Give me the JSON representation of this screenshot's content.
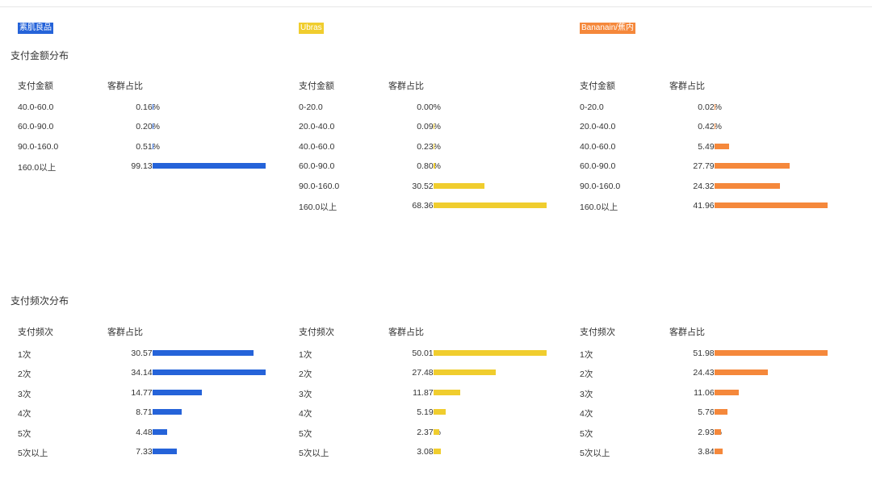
{
  "sections": {
    "amount_title": "支付金额分布",
    "freq_title": "支付频次分布"
  },
  "brands": [
    {
      "name": "素肌良品",
      "color": "#2563d9"
    },
    {
      "name": "Ubras",
      "color": "#f0cd2e"
    },
    {
      "name": "Bananain/蕉内",
      "color": "#f5883b"
    }
  ],
  "headers": {
    "amount_label": "支付金额",
    "freq_label": "支付频次",
    "share_label": "客群占比"
  },
  "chart_data": [
    {
      "type": "bar",
      "title": "支付金额分布",
      "panels": [
        {
          "brand": "素肌良品",
          "categories": [
            "40.0-60.0",
            "60.0-90.0",
            "90.0-160.0",
            "160.0以上"
          ],
          "values": [
            0.16,
            0.2,
            0.51,
            99.13
          ],
          "labels": [
            "0.16%",
            "0.20%",
            "0.51%",
            "99.13%"
          ]
        },
        {
          "brand": "Ubras",
          "categories": [
            "0-20.0",
            "20.0-40.0",
            "40.0-60.0",
            "60.0-90.0",
            "90.0-160.0",
            "160.0以上"
          ],
          "values": [
            0.0,
            0.09,
            0.23,
            0.8,
            30.52,
            68.36
          ],
          "labels": [
            "0.00%",
            "0.09%",
            "0.23%",
            "0.80%",
            "30.52%",
            "68.36%"
          ]
        },
        {
          "brand": "Bananain/蕉内",
          "categories": [
            "0-20.0",
            "20.0-40.0",
            "40.0-60.0",
            "60.0-90.0",
            "90.0-160.0",
            "160.0以上"
          ],
          "values": [
            0.02,
            0.42,
            5.49,
            27.79,
            24.32,
            41.96
          ],
          "labels": [
            "0.02%",
            "0.42%",
            "5.49%",
            "27.79%",
            "24.32%",
            "41.96%"
          ]
        }
      ]
    },
    {
      "type": "bar",
      "title": "支付频次分布",
      "panels": [
        {
          "brand": "素肌良品",
          "categories": [
            "1次",
            "2次",
            "3次",
            "4次",
            "5次",
            "5次以上"
          ],
          "values": [
            30.57,
            34.14,
            14.77,
            8.71,
            4.48,
            7.33
          ],
          "labels": [
            "30.57%",
            "34.14%",
            "14.77%",
            "8.71%",
            "4.48%",
            "7.33%"
          ]
        },
        {
          "brand": "Ubras",
          "categories": [
            "1次",
            "2次",
            "3次",
            "4次",
            "5次",
            "5次以上"
          ],
          "values": [
            50.01,
            27.48,
            11.87,
            5.19,
            2.37,
            3.08
          ],
          "labels": [
            "50.01%",
            "27.48%",
            "11.87%",
            "5.19%",
            "2.37%",
            "3.08%"
          ]
        },
        {
          "brand": "Bananain/蕉内",
          "categories": [
            "1次",
            "2次",
            "3次",
            "4次",
            "5次",
            "5次以上"
          ],
          "values": [
            51.98,
            24.43,
            11.06,
            5.76,
            2.93,
            3.84
          ],
          "labels": [
            "51.98%",
            "24.43%",
            "11.06%",
            "5.76%",
            "2.93%",
            "3.84%"
          ]
        }
      ]
    }
  ]
}
